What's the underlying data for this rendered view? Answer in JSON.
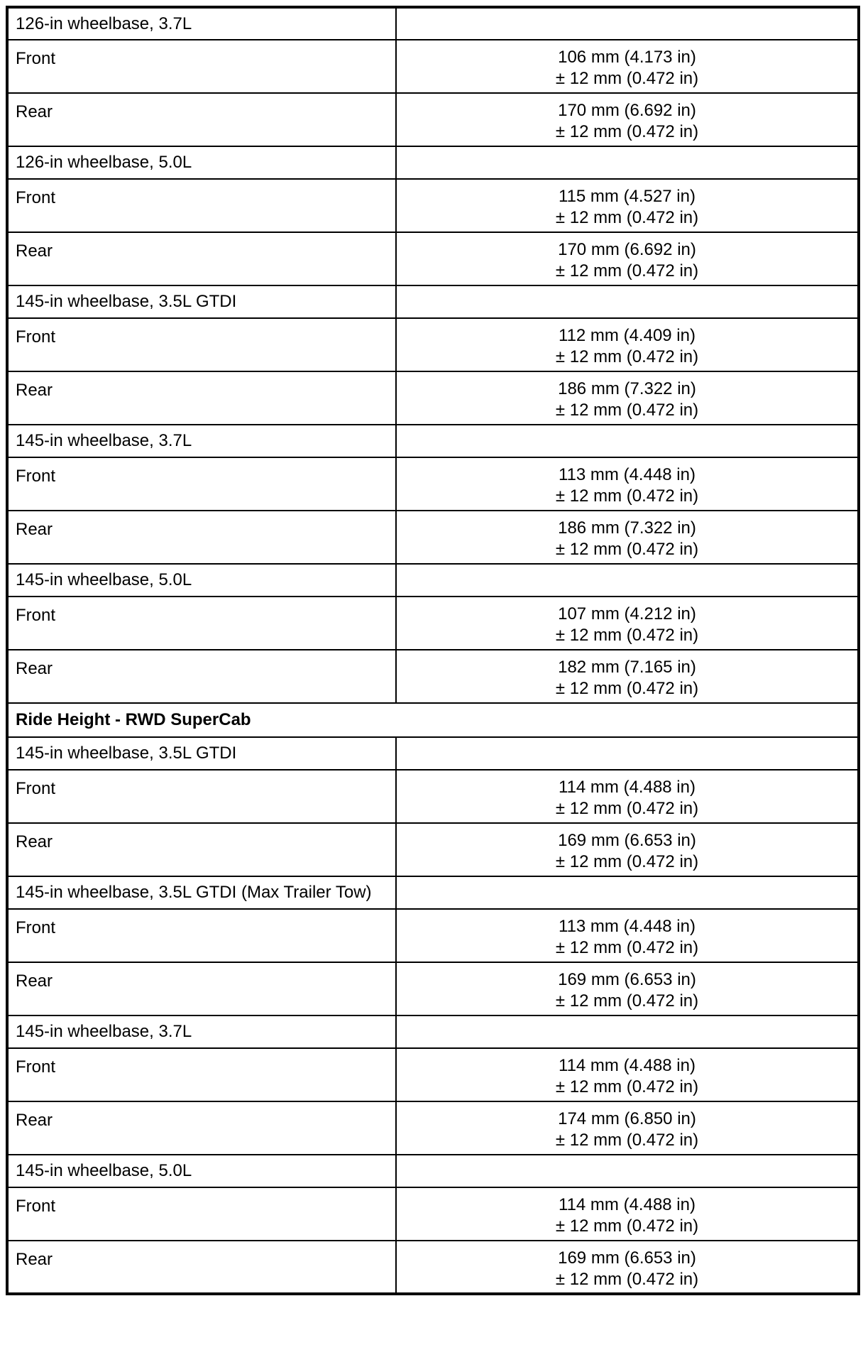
{
  "colors": {
    "background": "#ffffff",
    "text": "#000000",
    "border": "#000000"
  },
  "table": {
    "rows": [
      {
        "type": "subheader",
        "label": "126-in wheelbase, 3.7L"
      },
      {
        "type": "data",
        "label": "Front",
        "value": "106 mm (4.173 in)",
        "tolerance": "± 12 mm (0.472 in)"
      },
      {
        "type": "data",
        "label": "Rear",
        "value": "170 mm (6.692 in)",
        "tolerance": "± 12 mm (0.472 in)"
      },
      {
        "type": "subheader",
        "label": "126-in wheelbase, 5.0L"
      },
      {
        "type": "data",
        "label": "Front",
        "value": "115 mm (4.527 in)",
        "tolerance": "± 12 mm (0.472 in)"
      },
      {
        "type": "data",
        "label": "Rear",
        "value": "170 mm (6.692 in)",
        "tolerance": "± 12 mm (0.472 in)"
      },
      {
        "type": "subheader",
        "label": "145-in wheelbase, 3.5L GTDI"
      },
      {
        "type": "data",
        "label": "Front",
        "value": "112 mm (4.409 in)",
        "tolerance": "± 12 mm (0.472 in)"
      },
      {
        "type": "data",
        "label": "Rear",
        "value": "186 mm (7.322 in)",
        "tolerance": "± 12 mm (0.472 in)"
      },
      {
        "type": "subheader",
        "label": "145-in wheelbase, 3.7L"
      },
      {
        "type": "data",
        "label": "Front",
        "value": "113 mm (4.448 in)",
        "tolerance": "± 12 mm (0.472 in)"
      },
      {
        "type": "data",
        "label": "Rear",
        "value": "186 mm (7.322 in)",
        "tolerance": "± 12 mm (0.472 in)"
      },
      {
        "type": "subheader",
        "label": "145-in wheelbase, 5.0L"
      },
      {
        "type": "data",
        "label": "Front",
        "value": "107 mm (4.212 in)",
        "tolerance": "± 12 mm (0.472 in)"
      },
      {
        "type": "data",
        "label": "Rear",
        "value": "182 mm (7.165 in)",
        "tolerance": "± 12 mm (0.472 in)"
      },
      {
        "type": "section",
        "label": "Ride Height - RWD SuperCab"
      },
      {
        "type": "subheader",
        "label": "145-in wheelbase, 3.5L GTDI"
      },
      {
        "type": "data",
        "label": "Front",
        "value": "114 mm (4.488 in)",
        "tolerance": "± 12 mm (0.472 in)"
      },
      {
        "type": "data",
        "label": "Rear",
        "value": "169 mm (6.653 in)",
        "tolerance": "± 12 mm (0.472 in)"
      },
      {
        "type": "subheader",
        "label": "145-in wheelbase, 3.5L GTDI (Max Trailer Tow)"
      },
      {
        "type": "data",
        "label": "Front",
        "value": "113 mm (4.448 in)",
        "tolerance": "± 12 mm (0.472 in)"
      },
      {
        "type": "data",
        "label": "Rear",
        "value": "169 mm (6.653 in)",
        "tolerance": "± 12 mm (0.472 in)"
      },
      {
        "type": "subheader",
        "label": "145-in wheelbase, 3.7L"
      },
      {
        "type": "data",
        "label": "Front",
        "value": "114 mm (4.488 in)",
        "tolerance": "± 12 mm (0.472 in)"
      },
      {
        "type": "data",
        "label": "Rear",
        "value": "174 mm (6.850 in)",
        "tolerance": "± 12 mm (0.472 in)"
      },
      {
        "type": "subheader",
        "label": "145-in wheelbase, 5.0L"
      },
      {
        "type": "data",
        "label": "Front",
        "value": "114 mm (4.488 in)",
        "tolerance": "± 12 mm (0.472 in)"
      },
      {
        "type": "data",
        "label": "Rear",
        "value": "169 mm (6.653 in)",
        "tolerance": "± 12 mm (0.472 in)"
      }
    ]
  }
}
